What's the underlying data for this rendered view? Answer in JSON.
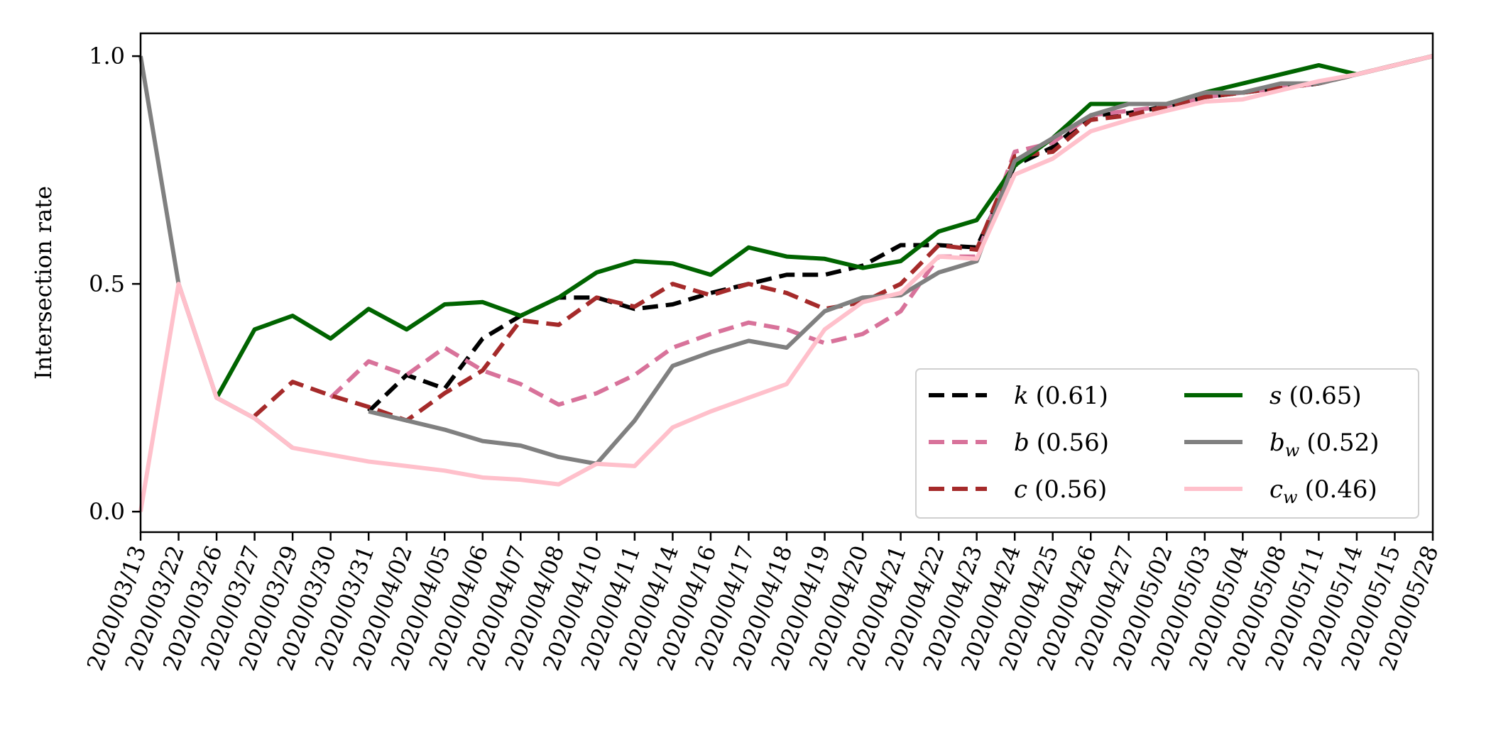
{
  "chart_data": {
    "type": "line",
    "title": "",
    "xlabel": "",
    "ylabel": "Intersection rate",
    "x": [
      "2020/03/13",
      "2020/03/22",
      "2020/03/26",
      "2020/03/27",
      "2020/03/29",
      "2020/03/30",
      "2020/03/31",
      "2020/04/02",
      "2020/04/05",
      "2020/04/06",
      "2020/04/07",
      "2020/04/08",
      "2020/04/10",
      "2020/04/11",
      "2020/04/14",
      "2020/04/16",
      "2020/04/17",
      "2020/04/18",
      "2020/04/19",
      "2020/04/20",
      "2020/04/21",
      "2020/04/22",
      "2020/04/23",
      "2020/04/24",
      "2020/04/25",
      "2020/04/26",
      "2020/04/27",
      "2020/05/02",
      "2020/05/03",
      "2020/05/04",
      "2020/05/08",
      "2020/05/11",
      "2020/05/14",
      "2020/05/15",
      "2020/05/28"
    ],
    "ylim": [
      -0.045,
      1.05
    ],
    "yticks": [
      {
        "value": 0.0,
        "label": "0.0"
      },
      {
        "value": 0.5,
        "label": "0.5"
      },
      {
        "value": 1.0,
        "label": "1.0"
      }
    ],
    "grid": false,
    "legend_position": "lower-right",
    "series": [
      {
        "key": "k",
        "symbol": "k",
        "subscript": "",
        "score": "(0.61)",
        "color": "#000000",
        "dashed": true,
        "values": [
          null,
          null,
          null,
          null,
          null,
          null,
          0.22,
          0.3,
          0.27,
          0.38,
          0.43,
          0.47,
          0.47,
          0.445,
          0.455,
          0.48,
          0.5,
          0.52,
          0.52,
          0.54,
          0.585,
          0.585,
          0.58,
          0.76,
          0.8,
          0.87,
          0.875,
          0.89,
          0.91,
          0.92,
          0.93,
          0.94,
          0.96,
          0.98,
          1.0
        ]
      },
      {
        "key": "b",
        "symbol": "b",
        "subscript": "",
        "score": "(0.56)",
        "color": "#d8729a",
        "dashed": true,
        "values": [
          null,
          null,
          null,
          null,
          null,
          0.25,
          0.33,
          0.3,
          0.36,
          0.31,
          0.28,
          0.235,
          0.26,
          0.3,
          0.36,
          0.39,
          0.415,
          0.4,
          0.37,
          0.39,
          0.44,
          0.56,
          0.56,
          0.79,
          0.81,
          0.87,
          0.88,
          0.89,
          0.91,
          0.92,
          0.93,
          0.94,
          0.96,
          0.98,
          1.0
        ]
      },
      {
        "key": "c",
        "symbol": "c",
        "subscript": "",
        "score": "(0.56)",
        "color": "#a52a2a",
        "dashed": true,
        "values": [
          null,
          null,
          null,
          0.21,
          0.285,
          0.255,
          0.23,
          0.2,
          0.26,
          0.31,
          0.42,
          0.41,
          0.47,
          0.45,
          0.5,
          0.475,
          0.5,
          0.48,
          0.445,
          0.46,
          0.5,
          0.585,
          0.575,
          0.78,
          0.79,
          0.86,
          0.87,
          0.89,
          0.91,
          0.92,
          0.93,
          0.94,
          0.96,
          0.98,
          1.0
        ]
      },
      {
        "key": "s",
        "symbol": "s",
        "subscript": "",
        "score": "(0.65)",
        "color": "#006400",
        "dashed": false,
        "values": [
          null,
          null,
          0.25,
          0.4,
          0.43,
          0.38,
          0.445,
          0.4,
          0.455,
          0.46,
          0.43,
          0.47,
          0.525,
          0.55,
          0.545,
          0.52,
          0.58,
          0.56,
          0.555,
          0.535,
          0.55,
          0.615,
          0.64,
          0.76,
          0.82,
          0.895,
          0.895,
          0.895,
          0.92,
          0.94,
          0.96,
          0.98,
          0.96,
          0.98,
          1.0
        ]
      },
      {
        "key": "bw",
        "symbol": "b",
        "subscript": "w",
        "score": "(0.52)",
        "color": "#808080",
        "dashed": false,
        "values": [
          1.0,
          0.5,
          0.25,
          0.205,
          0.14,
          null,
          0.22,
          0.2,
          0.18,
          0.155,
          0.145,
          0.12,
          0.105,
          0.2,
          0.32,
          0.35,
          0.375,
          0.36,
          0.44,
          0.47,
          0.475,
          0.525,
          0.55,
          0.77,
          0.82,
          0.87,
          0.895,
          0.895,
          0.92,
          0.92,
          0.94,
          0.94,
          0.96,
          0.98,
          1.0
        ]
      },
      {
        "key": "cw",
        "symbol": "c",
        "subscript": "w",
        "score": "(0.46)",
        "color": "#ffc0cb",
        "dashed": false,
        "values": [
          0.0,
          0.5,
          0.25,
          0.205,
          0.14,
          0.125,
          0.11,
          0.1,
          0.09,
          0.075,
          0.07,
          0.06,
          0.105,
          0.1,
          0.185,
          0.22,
          0.25,
          0.28,
          0.4,
          0.46,
          0.48,
          0.56,
          0.555,
          0.74,
          0.775,
          0.835,
          0.86,
          0.88,
          0.9,
          0.905,
          0.925,
          0.945,
          0.96,
          0.98,
          1.0
        ]
      }
    ]
  }
}
